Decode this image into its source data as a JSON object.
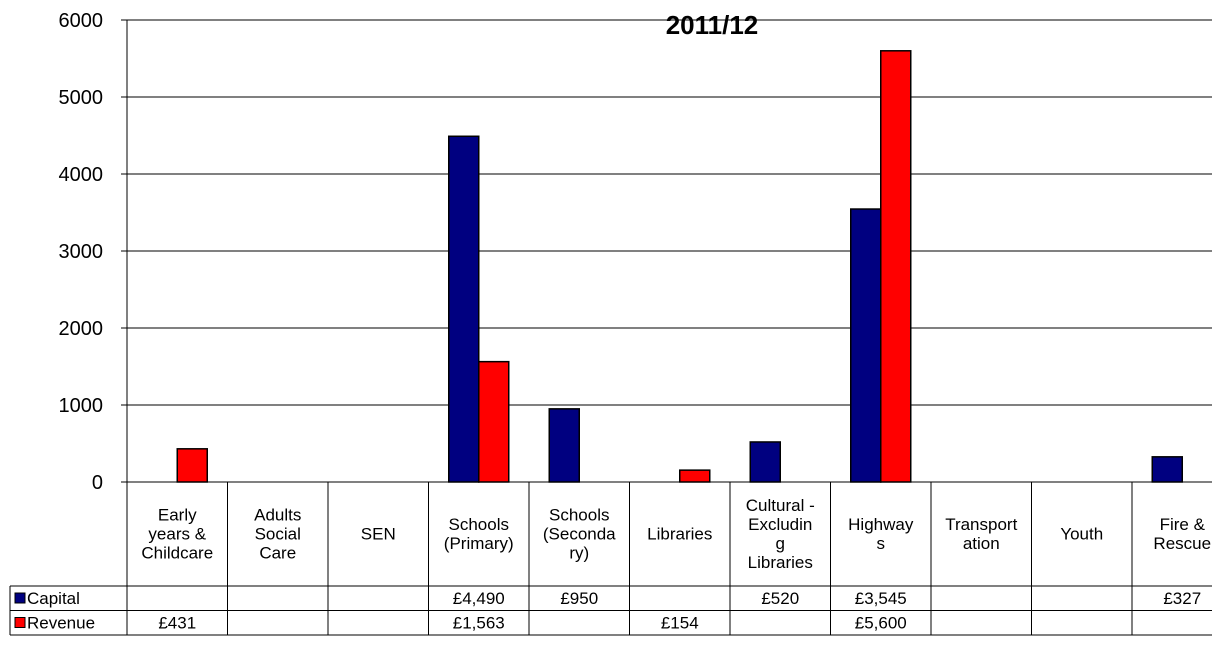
{
  "chart_data": {
    "type": "bar",
    "title": "2011/12",
    "xlabel": "",
    "ylabel": "",
    "ylim": [
      0,
      6000
    ],
    "yticks": [
      0,
      1000,
      2000,
      3000,
      4000,
      5000,
      6000
    ],
    "grid": true,
    "legend": "data-table",
    "categories": [
      "Early years & Childcare",
      "Adults Social Care",
      "SEN",
      "Schools (Primary)",
      "Schools (Secondary)",
      "Libraries",
      "Cultural - Excluding Libraries",
      "Highways",
      "Transportation",
      "Youth",
      "Fire & Rescue"
    ],
    "category_lines": [
      [
        "Early",
        "years &",
        "Childcare"
      ],
      [
        "Adults",
        "Social",
        "Care"
      ],
      [
        "SEN"
      ],
      [
        "Schools",
        "(Primary)"
      ],
      [
        "Schools",
        "(Seconda",
        "ry)"
      ],
      [
        "Libraries"
      ],
      [
        "Cultural -",
        "Excludin",
        "g",
        "Libraries"
      ],
      [
        "Highway",
        "s"
      ],
      [
        "Transport",
        "ation"
      ],
      [
        "Youth"
      ],
      [
        "Fire &",
        "Rescue"
      ]
    ],
    "series": [
      {
        "name": "Capital",
        "color": "#000080",
        "values": [
          null,
          null,
          null,
          4490,
          950,
          null,
          520,
          3545,
          null,
          null,
          327
        ],
        "labels": [
          "",
          "",
          "",
          "£4,490",
          "£950",
          "",
          "£520",
          "£3,545",
          "",
          "",
          "£327"
        ]
      },
      {
        "name": "Revenue",
        "color": "#ff0000",
        "values": [
          431,
          null,
          null,
          1563,
          null,
          154,
          null,
          5600,
          null,
          null,
          null
        ],
        "labels": [
          "£431",
          "",
          "",
          "£1,563",
          "",
          "£154",
          "",
          "£5,600",
          "",
          "",
          ""
        ]
      }
    ]
  }
}
